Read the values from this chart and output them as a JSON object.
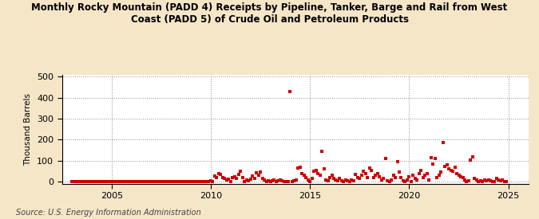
{
  "title": "Monthly Rocky Mountain (PADD 4) Receipts by Pipeline, Tanker, Barge and Rail from West\nCoast (PADD 5) of Crude Oil and Petroleum Products",
  "ylabel": "Thousand Barrels",
  "source": "Source: U.S. Energy Information Administration",
  "background_color": "#f5e6c8",
  "plot_bg_color": "#ffffff",
  "dot_color": "#cc0000",
  "ylim": [
    -10,
    510
  ],
  "yticks": [
    0,
    100,
    200,
    300,
    400,
    500
  ],
  "xlim": [
    2002.5,
    2026.0
  ],
  "xticks": [
    2005,
    2010,
    2015,
    2020,
    2025
  ],
  "scatter_data": [
    [
      2003.0,
      0
    ],
    [
      2003.1,
      0
    ],
    [
      2003.2,
      0
    ],
    [
      2003.3,
      0
    ],
    [
      2003.4,
      0
    ],
    [
      2003.5,
      0
    ],
    [
      2003.6,
      0
    ],
    [
      2003.7,
      0
    ],
    [
      2003.8,
      0
    ],
    [
      2003.9,
      0
    ],
    [
      2004.0,
      0
    ],
    [
      2004.1,
      0
    ],
    [
      2004.2,
      0
    ],
    [
      2004.3,
      0
    ],
    [
      2004.4,
      0
    ],
    [
      2004.5,
      0
    ],
    [
      2004.6,
      0
    ],
    [
      2004.7,
      0
    ],
    [
      2004.8,
      0
    ],
    [
      2004.9,
      0
    ],
    [
      2005.0,
      0
    ],
    [
      2005.1,
      0
    ],
    [
      2005.2,
      0
    ],
    [
      2005.3,
      0
    ],
    [
      2005.4,
      0
    ],
    [
      2005.5,
      0
    ],
    [
      2005.6,
      0
    ],
    [
      2005.7,
      0
    ],
    [
      2005.8,
      0
    ],
    [
      2005.9,
      0
    ],
    [
      2006.0,
      0
    ],
    [
      2006.1,
      0
    ],
    [
      2006.2,
      0
    ],
    [
      2006.3,
      0
    ],
    [
      2006.4,
      0
    ],
    [
      2006.5,
      0
    ],
    [
      2006.6,
      0
    ],
    [
      2006.7,
      0
    ],
    [
      2006.8,
      0
    ],
    [
      2006.9,
      0
    ],
    [
      2007.0,
      0
    ],
    [
      2007.1,
      0
    ],
    [
      2007.2,
      0
    ],
    [
      2007.3,
      0
    ],
    [
      2007.4,
      0
    ],
    [
      2007.5,
      0
    ],
    [
      2007.6,
      0
    ],
    [
      2007.7,
      0
    ],
    [
      2007.8,
      0
    ],
    [
      2007.9,
      0
    ],
    [
      2008.0,
      0
    ],
    [
      2008.1,
      0
    ],
    [
      2008.2,
      0
    ],
    [
      2008.3,
      0
    ],
    [
      2008.4,
      0
    ],
    [
      2008.5,
      0
    ],
    [
      2008.6,
      0
    ],
    [
      2008.7,
      0
    ],
    [
      2008.8,
      0
    ],
    [
      2008.9,
      0
    ],
    [
      2009.0,
      0
    ],
    [
      2009.1,
      0
    ],
    [
      2009.2,
      0
    ],
    [
      2009.3,
      0
    ],
    [
      2009.4,
      0
    ],
    [
      2009.5,
      0
    ],
    [
      2009.6,
      0
    ],
    [
      2009.7,
      0
    ],
    [
      2009.8,
      0
    ],
    [
      2009.9,
      0
    ],
    [
      2010.0,
      5
    ],
    [
      2010.1,
      0
    ],
    [
      2010.2,
      28
    ],
    [
      2010.3,
      22
    ],
    [
      2010.4,
      40
    ],
    [
      2010.5,
      35
    ],
    [
      2010.6,
      20
    ],
    [
      2010.7,
      15
    ],
    [
      2010.8,
      8
    ],
    [
      2010.9,
      12
    ],
    [
      2011.0,
      0
    ],
    [
      2011.1,
      20
    ],
    [
      2011.2,
      25
    ],
    [
      2011.3,
      18
    ],
    [
      2011.4,
      35
    ],
    [
      2011.5,
      50
    ],
    [
      2011.6,
      22
    ],
    [
      2011.7,
      0
    ],
    [
      2011.8,
      8
    ],
    [
      2011.9,
      5
    ],
    [
      2012.0,
      12
    ],
    [
      2012.1,
      28
    ],
    [
      2012.2,
      18
    ],
    [
      2012.3,
      42
    ],
    [
      2012.4,
      32
    ],
    [
      2012.5,
      48
    ],
    [
      2012.6,
      18
    ],
    [
      2012.7,
      8
    ],
    [
      2012.8,
      0
    ],
    [
      2012.9,
      5
    ],
    [
      2013.0,
      0
    ],
    [
      2013.1,
      5
    ],
    [
      2013.2,
      10
    ],
    [
      2013.3,
      0
    ],
    [
      2013.4,
      5
    ],
    [
      2013.5,
      8
    ],
    [
      2013.6,
      5
    ],
    [
      2013.7,
      0
    ],
    [
      2013.8,
      0
    ],
    [
      2013.9,
      0
    ],
    [
      2014.0,
      430
    ],
    [
      2014.1,
      0
    ],
    [
      2014.2,
      5
    ],
    [
      2014.3,
      10
    ],
    [
      2014.4,
      65
    ],
    [
      2014.5,
      70
    ],
    [
      2014.6,
      40
    ],
    [
      2014.7,
      30
    ],
    [
      2014.8,
      20
    ],
    [
      2014.9,
      10
    ],
    [
      2015.0,
      0
    ],
    [
      2015.1,
      15
    ],
    [
      2015.2,
      50
    ],
    [
      2015.3,
      55
    ],
    [
      2015.4,
      40
    ],
    [
      2015.5,
      30
    ],
    [
      2015.6,
      145
    ],
    [
      2015.7,
      60
    ],
    [
      2015.8,
      10
    ],
    [
      2015.9,
      5
    ],
    [
      2016.0,
      20
    ],
    [
      2016.1,
      30
    ],
    [
      2016.2,
      15
    ],
    [
      2016.3,
      10
    ],
    [
      2016.4,
      5
    ],
    [
      2016.5,
      15
    ],
    [
      2016.6,
      5
    ],
    [
      2016.7,
      0
    ],
    [
      2016.8,
      10
    ],
    [
      2016.9,
      5
    ],
    [
      2017.0,
      0
    ],
    [
      2017.1,
      10
    ],
    [
      2017.2,
      5
    ],
    [
      2017.3,
      35
    ],
    [
      2017.4,
      20
    ],
    [
      2017.5,
      15
    ],
    [
      2017.6,
      30
    ],
    [
      2017.7,
      50
    ],
    [
      2017.8,
      40
    ],
    [
      2017.9,
      20
    ],
    [
      2018.0,
      65
    ],
    [
      2018.1,
      55
    ],
    [
      2018.2,
      20
    ],
    [
      2018.3,
      30
    ],
    [
      2018.4,
      40
    ],
    [
      2018.5,
      25
    ],
    [
      2018.6,
      10
    ],
    [
      2018.7,
      15
    ],
    [
      2018.8,
      110
    ],
    [
      2018.9,
      5
    ],
    [
      2019.0,
      0
    ],
    [
      2019.1,
      10
    ],
    [
      2019.2,
      30
    ],
    [
      2019.3,
      20
    ],
    [
      2019.4,
      95
    ],
    [
      2019.5,
      45
    ],
    [
      2019.6,
      20
    ],
    [
      2019.7,
      5
    ],
    [
      2019.8,
      0
    ],
    [
      2019.9,
      10
    ],
    [
      2020.0,
      25
    ],
    [
      2020.1,
      0
    ],
    [
      2020.2,
      30
    ],
    [
      2020.3,
      15
    ],
    [
      2020.4,
      10
    ],
    [
      2020.5,
      40
    ],
    [
      2020.6,
      55
    ],
    [
      2020.7,
      20
    ],
    [
      2020.8,
      30
    ],
    [
      2020.9,
      40
    ],
    [
      2021.0,
      10
    ],
    [
      2021.1,
      115
    ],
    [
      2021.2,
      85
    ],
    [
      2021.3,
      110
    ],
    [
      2021.4,
      20
    ],
    [
      2021.5,
      30
    ],
    [
      2021.6,
      45
    ],
    [
      2021.7,
      185
    ],
    [
      2021.8,
      75
    ],
    [
      2021.9,
      80
    ],
    [
      2022.0,
      60
    ],
    [
      2022.1,
      55
    ],
    [
      2022.2,
      50
    ],
    [
      2022.3,
      70
    ],
    [
      2022.4,
      40
    ],
    [
      2022.5,
      30
    ],
    [
      2022.6,
      25
    ],
    [
      2022.7,
      20
    ],
    [
      2022.8,
      10
    ],
    [
      2022.9,
      0
    ],
    [
      2023.0,
      5
    ],
    [
      2023.1,
      105
    ],
    [
      2023.2,
      120
    ],
    [
      2023.3,
      15
    ],
    [
      2023.4,
      10
    ],
    [
      2023.5,
      0
    ],
    [
      2023.6,
      5
    ],
    [
      2023.7,
      0
    ],
    [
      2023.8,
      10
    ],
    [
      2023.9,
      5
    ],
    [
      2024.0,
      10
    ],
    [
      2024.1,
      5
    ],
    [
      2024.2,
      0
    ],
    [
      2024.3,
      0
    ],
    [
      2024.4,
      15
    ],
    [
      2024.5,
      10
    ],
    [
      2024.6,
      5
    ],
    [
      2024.7,
      8
    ],
    [
      2024.8,
      0
    ],
    [
      2024.9,
      0
    ]
  ]
}
